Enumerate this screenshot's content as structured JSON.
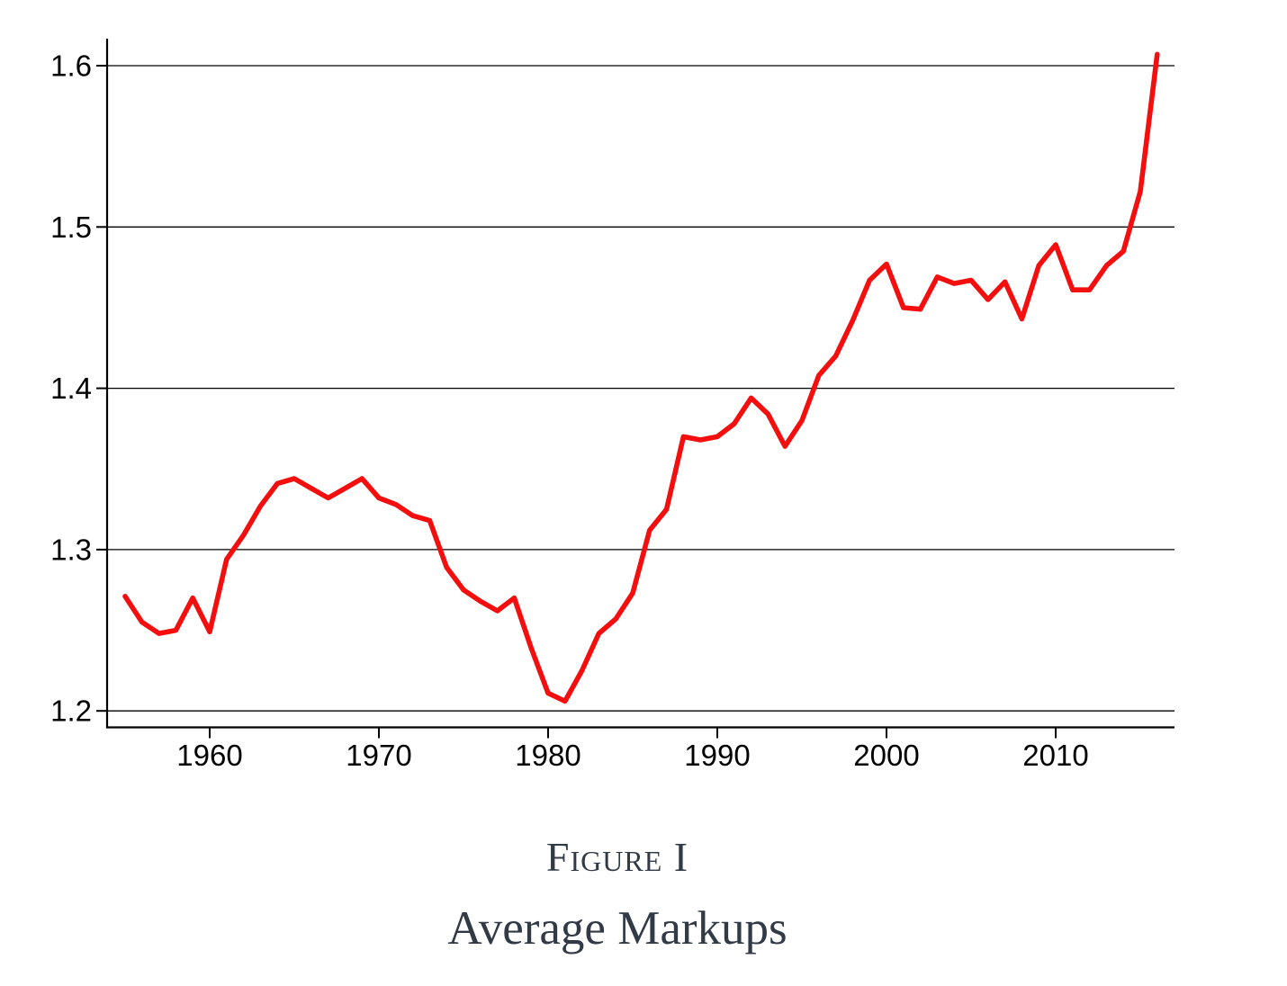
{
  "figure": {
    "caption_label": "Figure I",
    "caption_title": "Average Markups"
  },
  "chart_data": {
    "type": "line",
    "title": "Average Markups",
    "figure_label": "Figure I",
    "xlabel": "",
    "ylabel": "",
    "grid": "horizontal",
    "legend": "none",
    "xlim": [
      1953.9,
      2017.0
    ],
    "ylim": [
      1.19,
      1.617
    ],
    "xticks": {
      "values": [
        1960,
        1970,
        1980,
        1990,
        2000,
        2010
      ],
      "labels": [
        "1960",
        "1970",
        "1980",
        "1990",
        "2000",
        "2010"
      ]
    },
    "yticks": {
      "values": [
        1.2,
        1.3,
        1.4,
        1.5,
        1.6
      ],
      "labels": [
        "1.2",
        "1.3",
        "1.4",
        "1.5",
        "1.6"
      ]
    },
    "series": [
      {
        "name": "average-markup",
        "color": "#f40e0e",
        "x": [
          1955,
          1956,
          1957,
          1958,
          1959,
          1960,
          1961,
          1962,
          1963,
          1964,
          1965,
          1966,
          1967,
          1968,
          1969,
          1970,
          1971,
          1972,
          1973,
          1974,
          1975,
          1976,
          1977,
          1978,
          1979,
          1980,
          1981,
          1982,
          1983,
          1984,
          1985,
          1986,
          1987,
          1988,
          1989,
          1990,
          1991,
          1992,
          1993,
          1994,
          1995,
          1996,
          1997,
          1998,
          1999,
          2000,
          2001,
          2002,
          2003,
          2004,
          2005,
          2006,
          2007,
          2008,
          2009,
          2010,
          2011,
          2012,
          2013,
          2014,
          2015,
          2016
        ],
        "y": [
          1.271,
          1.255,
          1.248,
          1.25,
          1.27,
          1.249,
          1.294,
          1.309,
          1.327,
          1.341,
          1.344,
          1.338,
          1.332,
          1.338,
          1.344,
          1.332,
          1.328,
          1.321,
          1.318,
          1.289,
          1.275,
          1.268,
          1.262,
          1.27,
          1.239,
          1.211,
          1.206,
          1.225,
          1.248,
          1.257,
          1.273,
          1.312,
          1.325,
          1.37,
          1.368,
          1.37,
          1.378,
          1.394,
          1.384,
          1.364,
          1.38,
          1.408,
          1.42,
          1.442,
          1.467,
          1.477,
          1.45,
          1.449,
          1.469,
          1.465,
          1.467,
          1.455,
          1.466,
          1.443,
          1.476,
          1.489,
          1.461,
          1.461,
          1.476,
          1.485,
          1.522,
          1.607
        ]
      }
    ]
  }
}
